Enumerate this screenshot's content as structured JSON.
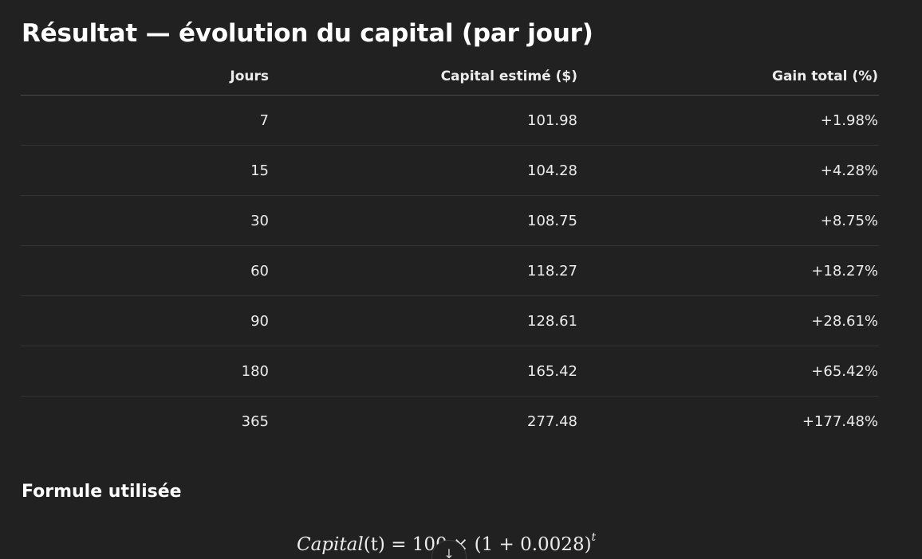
{
  "page": {
    "title": "Résultat — évolution du capital (par jour)"
  },
  "table": {
    "headers": [
      "Jours",
      "Capital estimé ($)",
      "Gain total (%)"
    ],
    "rows": [
      [
        "7",
        "101.98",
        "+1.98%"
      ],
      [
        "15",
        "104.28",
        "+4.28%"
      ],
      [
        "30",
        "108.75",
        "+8.75%"
      ],
      [
        "60",
        "118.27",
        "+18.27%"
      ],
      [
        "90",
        "128.61",
        "+28.61%"
      ],
      [
        "180",
        "165.42",
        "+65.42%"
      ],
      [
        "365",
        "277.48",
        "+177.48%"
      ]
    ]
  },
  "formula_section": {
    "heading": "Formule utilisée",
    "formula": {
      "lhs_name": "Capital",
      "lhs_arg": "(t)",
      "rhs": " = 100 × (1 + 0.0028)",
      "exponent": "t"
    }
  },
  "scroll_button": {
    "icon": "arrow-down-icon",
    "glyph": "↓"
  }
}
